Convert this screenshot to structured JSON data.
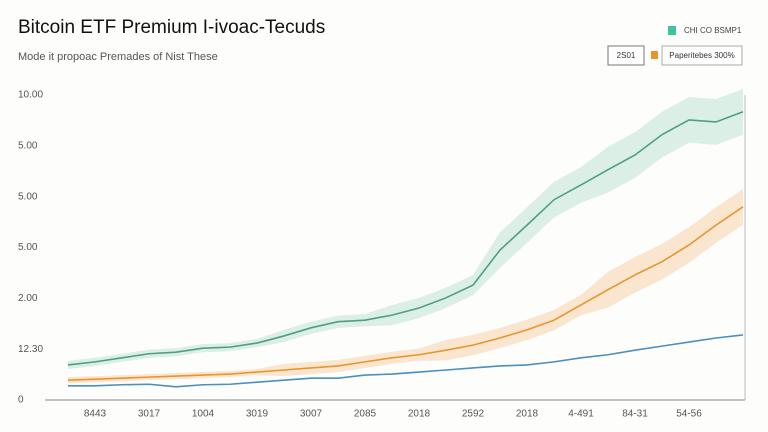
{
  "chart_data": {
    "type": "line",
    "title": "Bitcoin ETF Premium I-ivoac-Tecuds",
    "subtitle": "Mode it propoac Premades of Nist These",
    "categories": [
      null,
      "8443",
      null,
      "3017",
      null,
      "1004",
      null,
      "3019",
      null,
      "3007",
      null,
      "2085",
      null,
      "2018",
      null,
      "2592",
      null,
      "2018",
      null,
      "4-491",
      null,
      "84-31",
      null,
      "54-56",
      null,
      null
    ],
    "ylim": [
      0,
      6
    ],
    "yticks": [
      {
        "value": 0,
        "label": "0"
      },
      {
        "value": 1,
        "label": "12.30"
      },
      {
        "value": 2,
        "label": "2.00"
      },
      {
        "value": 3,
        "label": "5.00"
      },
      {
        "value": 4,
        "label": "5.00"
      },
      {
        "value": 5,
        "label": "5.00"
      },
      {
        "value": 6,
        "label": "10.00"
      }
    ],
    "grid": false,
    "series": [
      {
        "name": "CHI CO BSMP1",
        "color": "#4e9e86",
        "band_color": "#cfe9df",
        "values": [
          0.69,
          0.75,
          0.83,
          0.91,
          0.94,
          1.02,
          1.04,
          1.12,
          1.26,
          1.42,
          1.54,
          1.57,
          1.67,
          1.81,
          2.01,
          2.26,
          2.95,
          3.44,
          3.94,
          4.23,
          4.53,
          4.82,
          5.22,
          5.51,
          5.47,
          5.67
        ],
        "upper": [
          0.77,
          0.83,
          0.91,
          0.99,
          1.02,
          1.1,
          1.12,
          1.2,
          1.38,
          1.54,
          1.66,
          1.69,
          1.87,
          2.01,
          2.21,
          2.46,
          3.3,
          3.79,
          4.29,
          4.58,
          4.98,
          5.27,
          5.67,
          5.96,
          5.92,
          6.12
        ],
        "lower": [
          0.61,
          0.67,
          0.75,
          0.83,
          0.86,
          0.94,
          0.96,
          1.04,
          1.14,
          1.3,
          1.42,
          1.45,
          1.47,
          1.61,
          1.81,
          2.06,
          2.6,
          3.09,
          3.59,
          3.88,
          4.08,
          4.37,
          4.77,
          5.06,
          5.02,
          5.22
        ]
      },
      {
        "name": "Paperitebes 300%",
        "color": "#e8952e",
        "band_color": "#f8dcc0",
        "values": [
          0.39,
          0.41,
          0.43,
          0.45,
          0.47,
          0.49,
          0.51,
          0.55,
          0.59,
          0.63,
          0.67,
          0.75,
          0.83,
          0.89,
          0.98,
          1.08,
          1.22,
          1.38,
          1.57,
          1.87,
          2.17,
          2.46,
          2.72,
          3.05,
          3.44,
          3.8
        ],
        "upper": [
          0.45,
          0.47,
          0.49,
          0.51,
          0.53,
          0.55,
          0.57,
          0.61,
          0.71,
          0.75,
          0.79,
          0.87,
          0.95,
          1.01,
          1.18,
          1.28,
          1.42,
          1.58,
          1.77,
          2.07,
          2.52,
          2.81,
          3.07,
          3.4,
          3.79,
          4.15
        ],
        "lower": [
          0.33,
          0.35,
          0.37,
          0.39,
          0.41,
          0.43,
          0.45,
          0.49,
          0.47,
          0.51,
          0.55,
          0.63,
          0.71,
          0.77,
          0.78,
          0.88,
          1.02,
          1.18,
          1.37,
          1.67,
          1.82,
          2.11,
          2.37,
          2.7,
          3.09,
          3.45
        ]
      },
      {
        "name": "2S01",
        "color": "#4a8fc0",
        "values": [
          0.28,
          0.28,
          0.3,
          0.31,
          0.26,
          0.3,
          0.31,
          0.35,
          0.39,
          0.43,
          0.43,
          0.49,
          0.51,
          0.55,
          0.59,
          0.63,
          0.67,
          0.69,
          0.75,
          0.83,
          0.89,
          0.98,
          1.06,
          1.14,
          1.22,
          1.28
        ]
      }
    ]
  }
}
